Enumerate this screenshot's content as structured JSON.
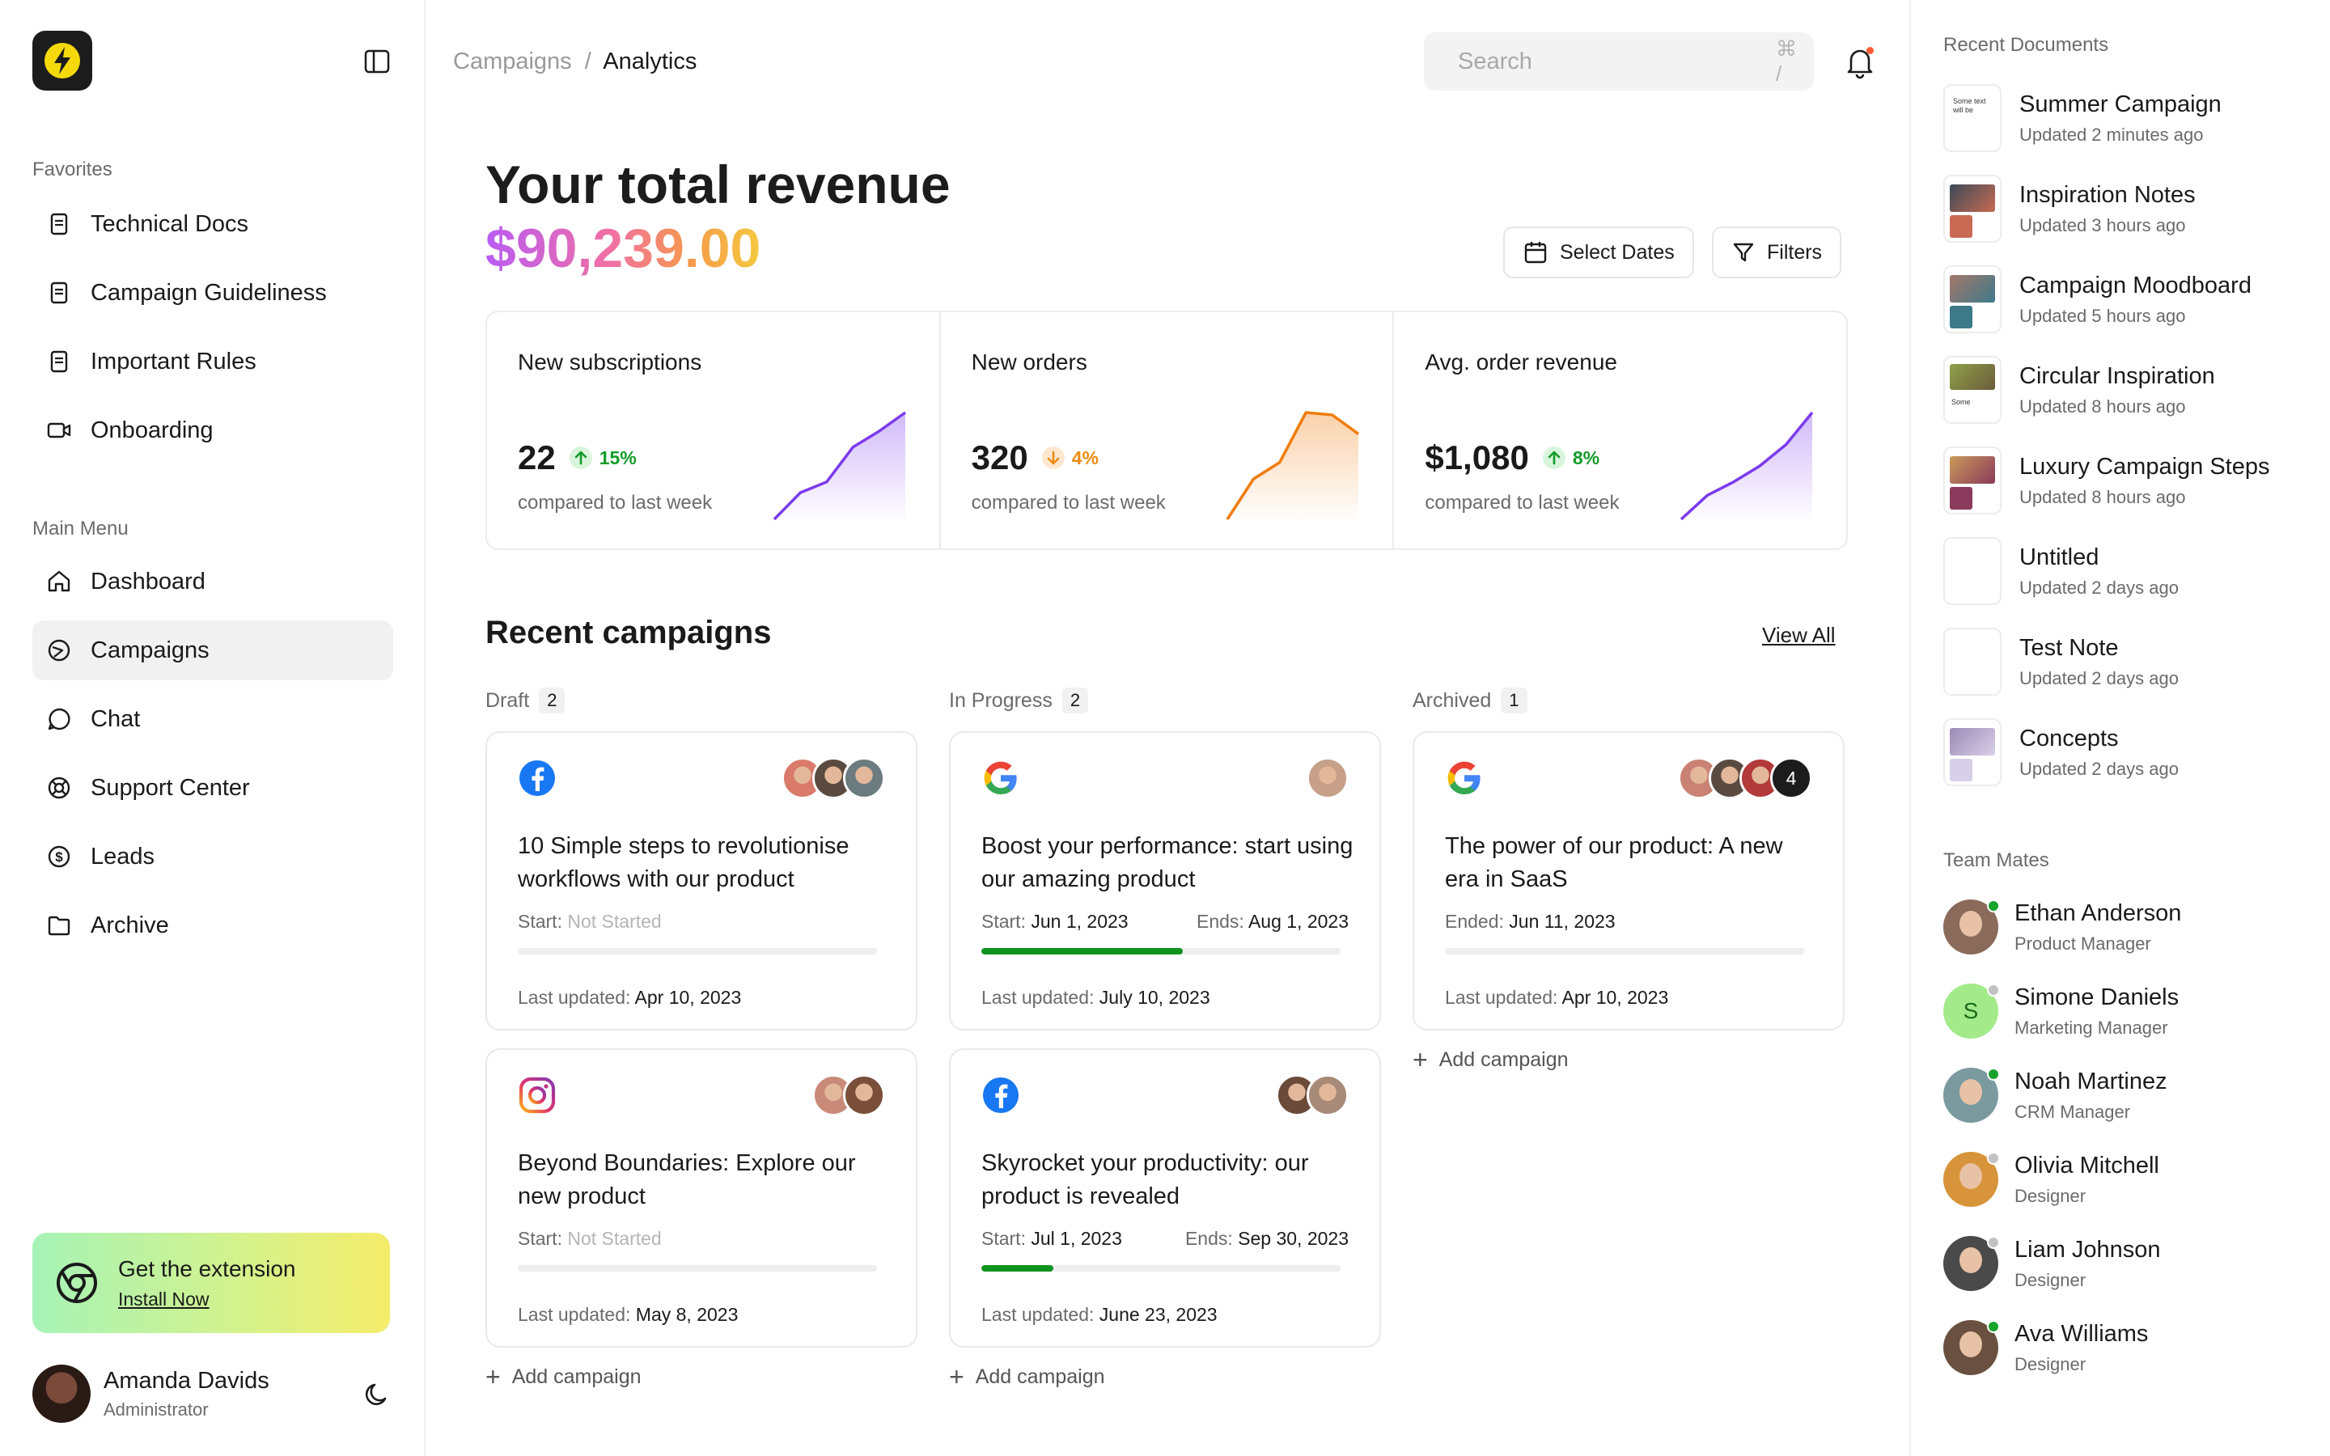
{
  "sidebar": {
    "favorites_label": "Favorites",
    "favorites": [
      {
        "label": "Technical Docs",
        "icon": "doc-icon"
      },
      {
        "label": "Campaign Guideliness",
        "icon": "doc-icon"
      },
      {
        "label": "Important Rules",
        "icon": "doc-icon"
      },
      {
        "label": "Onboarding",
        "icon": "video-icon"
      }
    ],
    "menu_label": "Main Menu",
    "menu": [
      {
        "label": "Dashboard",
        "icon": "home-icon"
      },
      {
        "label": "Campaigns",
        "icon": "campaigns-icon",
        "active": true
      },
      {
        "label": "Chat",
        "icon": "chat-icon"
      },
      {
        "label": "Support Center",
        "icon": "support-icon"
      },
      {
        "label": "Leads",
        "icon": "dollar-icon"
      },
      {
        "label": "Archive",
        "icon": "folder-icon"
      }
    ],
    "extension": {
      "title": "Get the extension",
      "link": "Install Now"
    },
    "user": {
      "name": "Amanda Davids",
      "role": "Administrator"
    }
  },
  "header": {
    "breadcrumb_parent": "Campaigns",
    "breadcrumb_sep": "/",
    "breadcrumb_current": "Analytics",
    "search_placeholder": "Search",
    "search_shortcut": "⌘ /"
  },
  "revenue": {
    "title": "Your total revenue",
    "amount": "$90,239.00",
    "select_dates": "Select Dates",
    "filters": "Filters"
  },
  "stats": [
    {
      "label": "New subscriptions",
      "value": "22",
      "change": "15%",
      "trend": "up",
      "compare": "compared to last week",
      "color": "#7c3aed",
      "series": [
        0,
        10,
        14,
        27,
        33,
        40
      ]
    },
    {
      "label": "New orders",
      "value": "320",
      "change": "4%",
      "trend": "down",
      "compare": "compared to last week",
      "color": "#f07c0c",
      "series": [
        0,
        17,
        24,
        45,
        44,
        36
      ]
    },
    {
      "label": "Avg. order revenue",
      "value": "$1,080",
      "change": "8%",
      "trend": "up",
      "compare": "compared to last week",
      "color": "#7c3aed",
      "series": [
        0,
        9,
        14,
        20,
        28,
        40
      ]
    }
  ],
  "campaigns": {
    "title": "Recent campaigns",
    "view_all": "View All",
    "add_label": "Add campaign",
    "columns": [
      {
        "label": "Draft",
        "count": "2",
        "cards": [
          {
            "platform": "facebook",
            "title": "10 Simple steps to revolutionise workflows with our product",
            "start_label": "Start:",
            "start": "Not Started",
            "start_muted": true,
            "end_label": "",
            "end": "",
            "progress": 0,
            "updated_label": "Last updated:",
            "updated": "Apr 10, 2023",
            "avatars": [
              "#d97a6b",
              "#5b4a3f",
              "#6b7b80"
            ],
            "extra": ""
          },
          {
            "platform": "instagram",
            "title": "Beyond Boundaries: Explore our new product",
            "start_label": "Start:",
            "start": "Not Started",
            "start_muted": true,
            "end_label": "",
            "end": "",
            "progress": 0,
            "updated_label": "Last updated:",
            "updated": "May 8, 2023",
            "avatars": [
              "#c98a7a",
              "#7a4f3a"
            ],
            "extra": ""
          }
        ]
      },
      {
        "label": "In Progress",
        "count": "2",
        "cards": [
          {
            "platform": "google",
            "title": "Boost your performance: start using our amazing product",
            "start_label": "Start:",
            "start": "Jun 1, 2023",
            "start_muted": false,
            "end_label": "Ends:",
            "end": "Aug 1, 2023",
            "progress": 0.56,
            "updated_label": "Last updated:",
            "updated": "July 10, 2023",
            "avatars": [
              "#c7a08a"
            ],
            "extra": ""
          },
          {
            "platform": "facebook",
            "title": "Skyrocket your productivity: our product is revealed",
            "start_label": "Start:",
            "start": "Jul 1, 2023",
            "start_muted": false,
            "end_label": "Ends:",
            "end": "Sep 30, 2023",
            "progress": 0.2,
            "updated_label": "Last updated:",
            "updated": "June 23, 2023",
            "avatars": [
              "#6b4a3a",
              "#a88a78"
            ],
            "extra": ""
          }
        ]
      },
      {
        "label": "Archived",
        "count": "1",
        "cards": [
          {
            "platform": "google",
            "title": "The power of our product: A new era in SaaS",
            "start_label": "Ended:",
            "start": "Jun 11, 2023",
            "start_muted": false,
            "end_label": "",
            "end": "",
            "progress": 0,
            "updated_label": "Last updated:",
            "updated": "Apr 10, 2023",
            "avatars": [
              "#c98274",
              "#5b4a3f",
              "#b23a3a"
            ],
            "extra": "4"
          }
        ]
      }
    ]
  },
  "right": {
    "docs_label": "Recent Documents",
    "docs": [
      {
        "name": "Summer Campaign",
        "updated": "Updated 2 minutes ago",
        "thumb": "text",
        "thumb_text": "Some text will be"
      },
      {
        "name": "Inspiration Notes",
        "updated": "Updated 3 hours ago",
        "thumb": "photo",
        "colors": [
          "#3b4a55",
          "#c96a55"
        ]
      },
      {
        "name": "Campaign Moodboard",
        "updated": "Updated 5 hours ago",
        "thumb": "photo",
        "colors": [
          "#a5776a",
          "#3c7a8a"
        ]
      },
      {
        "name": "Circular Inspiration",
        "updated": "Updated 8 hours ago",
        "thumb": "mixed",
        "colors": [
          "#8fa24a",
          "#6b5a3a"
        ]
      },
      {
        "name": "Luxury Campaign Steps",
        "updated": "Updated 8 hours ago",
        "thumb": "photo",
        "colors": [
          "#c99a5a",
          "#8a3a5a"
        ]
      },
      {
        "name": "Untitled",
        "updated": "Updated 2 days ago",
        "thumb": "blank"
      },
      {
        "name": "Test Note",
        "updated": "Updated 2 days ago",
        "thumb": "blank"
      },
      {
        "name": "Concepts",
        "updated": "Updated 2 days ago",
        "thumb": "photo",
        "colors": [
          "#9a8ab5",
          "#d8d0e8"
        ]
      }
    ],
    "mates_label": "Team Mates",
    "mates": [
      {
        "name": "Ethan Anderson",
        "role": "Product Manager",
        "color": "#8a6a5a",
        "online": true,
        "initial": ""
      },
      {
        "name": "Simone Daniels",
        "role": "Marketing Manager",
        "color": "#a3ea8a",
        "online": false,
        "initial": "S"
      },
      {
        "name": "Noah Martinez",
        "role": "CRM Manager",
        "color": "#7a9aa0",
        "online": true,
        "initial": ""
      },
      {
        "name": "Olivia Mitchell",
        "role": "Designer",
        "color": "#d8943a",
        "online": false,
        "initial": ""
      },
      {
        "name": "Liam Johnson",
        "role": "Designer",
        "color": "#4a4a4a",
        "online": false,
        "initial": ""
      },
      {
        "name": "Ava Williams",
        "role": "Designer",
        "color": "#6a5040",
        "online": true,
        "initial": ""
      }
    ]
  }
}
